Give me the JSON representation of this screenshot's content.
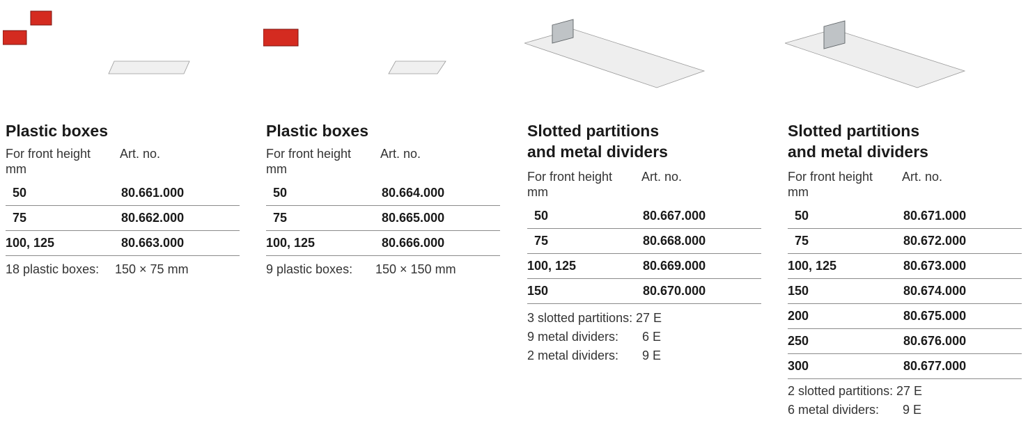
{
  "columns": [
    {
      "title_lines": [
        "Plastic boxes"
      ],
      "hdr_front": [
        "For front height",
        "mm"
      ],
      "hdr_art": "Art. no.",
      "rows": [
        {
          "height": "50",
          "art": "80.661.000"
        },
        {
          "height": "75",
          "art": "80.662.000"
        },
        {
          "height": "100, 125",
          "art": "80.663.000"
        }
      ],
      "notes": [
        {
          "label": "18 plastic boxes:",
          "value": "150 × 75 mm"
        }
      ]
    },
    {
      "title_lines": [
        "Plastic boxes"
      ],
      "hdr_front": [
        "For front height",
        "mm"
      ],
      "hdr_art": "Art. no.",
      "rows": [
        {
          "height": "50",
          "art": "80.664.000"
        },
        {
          "height": "75",
          "art": "80.665.000"
        },
        {
          "height": "100, 125",
          "art": "80.666.000"
        }
      ],
      "notes": [
        {
          "label": "9 plastic boxes:",
          "value": "150 × 150 mm"
        }
      ]
    },
    {
      "title_lines": [
        "Slotted partitions",
        "and metal dividers"
      ],
      "hdr_front": [
        "For front height",
        "mm"
      ],
      "hdr_art": "Art. no.",
      "rows": [
        {
          "height": "50",
          "art": "80.667.000"
        },
        {
          "height": "75",
          "art": "80.668.000"
        },
        {
          "height": "100, 125",
          "art": "80.669.000"
        },
        {
          "height": "150",
          "art": "80.670.000"
        }
      ],
      "notes": [
        {
          "label": "3 slotted partitions:",
          "value": "27 E"
        },
        {
          "label": "9 metal dividers:",
          "value": "6 E"
        },
        {
          "label": "2 metal dividers:",
          "value": "9 E"
        }
      ]
    },
    {
      "title_lines": [
        "Slotted partitions",
        "and metal dividers"
      ],
      "hdr_front": [
        "For front height",
        "mm"
      ],
      "hdr_art": "Art. no.",
      "rows": [
        {
          "height": "50",
          "art": "80.671.000"
        },
        {
          "height": "75",
          "art": "80.672.000"
        },
        {
          "height": "100, 125",
          "art": "80.673.000"
        },
        {
          "height": "150",
          "art": "80.674.000"
        },
        {
          "height": "200",
          "art": "80.675.000"
        },
        {
          "height": "250",
          "art": "80.676.000"
        },
        {
          "height": "300",
          "art": "80.677.000"
        }
      ],
      "notes": [
        {
          "label": "2 slotted partitions:",
          "value": "27 E"
        },
        {
          "label": "6 metal dividers:",
          "value": "9 E"
        }
      ]
    }
  ],
  "colors": {
    "box_red": "#d42b20",
    "divider_grey": "#bfc3c6"
  },
  "illustrations": [
    "plastic-boxes-18-illustration",
    "plastic-boxes-9-illustration",
    "slotted-partitions-illustration",
    "slotted-partitions-illustration"
  ]
}
